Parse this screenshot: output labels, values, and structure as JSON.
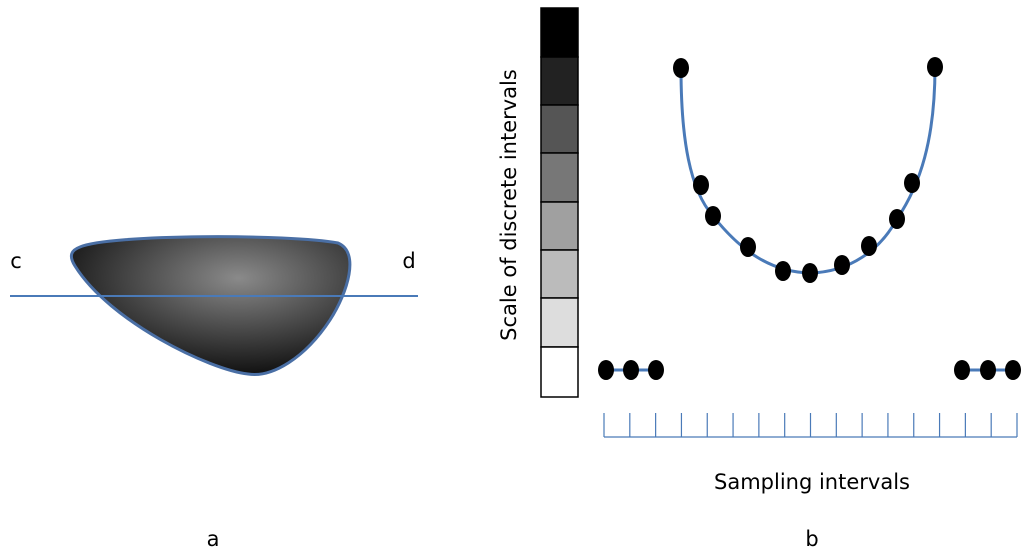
{
  "labels": {
    "left_point": "c",
    "right_point": "d",
    "panel_a": "a",
    "panel_b": "b",
    "vertical_axis": "Scale of discrete intervals",
    "horizontal_axis": "Sampling intervals"
  }
}
